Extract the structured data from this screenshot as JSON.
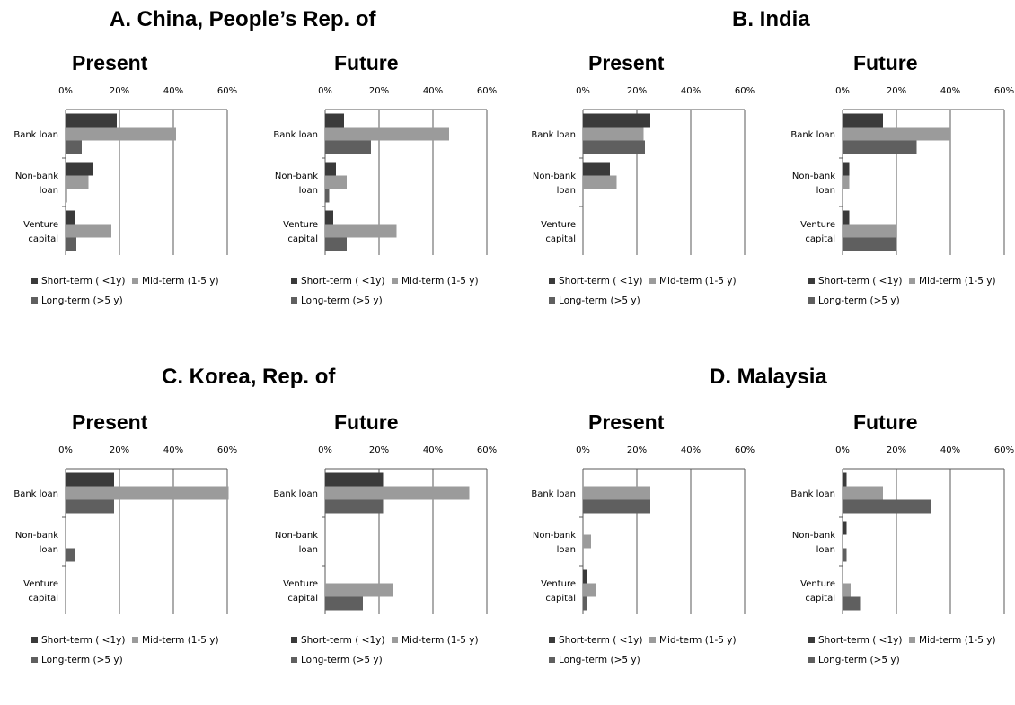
{
  "sections": [
    {
      "id": "A",
      "title": "A.   China, People’s Rep. of"
    },
    {
      "id": "B",
      "title": "B.   India"
    },
    {
      "id": "C",
      "title": "C.   Korea, Rep. of"
    },
    {
      "id": "D",
      "title": "D.   Malaysia"
    }
  ],
  "colors": {
    "short_term": "#3a3a3a",
    "mid_term": "#9b9b9b",
    "long_term": "#5f5f5f",
    "axis": "#595959",
    "grid": "#595959"
  },
  "chart_data": [
    {
      "section": "A",
      "title": "Present",
      "type": "bar",
      "orientation": "horizontal",
      "categories": [
        [
          "Bank loan"
        ],
        [
          "Non-bank",
          "loan"
        ],
        [
          "Venture",
          "capital"
        ]
      ],
      "xlim": [
        0,
        60
      ],
      "ticks": [
        "0%",
        "20%",
        "40%",
        "60%"
      ],
      "grid": true,
      "legend": "bottom",
      "series": [
        {
          "name": "Short-term ( <1y)",
          "values": [
            19,
            10,
            3.5
          ]
        },
        {
          "name": "Mid-term (1-5 y)",
          "values": [
            41,
            8.5,
            17
          ]
        },
        {
          "name": "Long-term (>5 y)",
          "values": [
            6,
            0.5,
            4
          ]
        }
      ]
    },
    {
      "section": "A",
      "title": "Future",
      "type": "bar",
      "orientation": "horizontal",
      "categories": [
        [
          "Bank loan"
        ],
        [
          "Non-bank",
          "loan"
        ],
        [
          "Venture",
          "capital"
        ]
      ],
      "xlim": [
        0,
        60
      ],
      "ticks": [
        "0%",
        "20%",
        "40%",
        "60%"
      ],
      "grid": true,
      "legend": "bottom",
      "series": [
        {
          "name": "Short-term ( <1y)",
          "values": [
            7,
            4,
            3
          ]
        },
        {
          "name": "Mid-term (1-5 y)",
          "values": [
            46,
            8,
            26.5
          ]
        },
        {
          "name": "Long-term (>5 y)",
          "values": [
            17,
            1.5,
            8
          ]
        }
      ]
    },
    {
      "section": "B",
      "title": "Present",
      "type": "bar",
      "orientation": "horizontal",
      "categories": [
        [
          "Bank loan"
        ],
        [
          "Non-bank",
          "loan"
        ],
        [
          "Venture",
          "capital"
        ]
      ],
      "xlim": [
        0,
        60
      ],
      "ticks": [
        "0%",
        "20%",
        "40%",
        "60%"
      ],
      "grid": true,
      "legend": "bottom",
      "series": [
        {
          "name": "Short-term ( <1y)",
          "values": [
            25,
            10,
            0
          ]
        },
        {
          "name": "Mid-term (1-5 y)",
          "values": [
            22.5,
            12.5,
            0
          ]
        },
        {
          "name": "Long-term (>5 y)",
          "values": [
            23,
            0,
            0
          ]
        }
      ]
    },
    {
      "section": "B",
      "title": "Future",
      "type": "bar",
      "orientation": "horizontal",
      "categories": [
        [
          "Bank loan"
        ],
        [
          "Non-bank",
          "loan"
        ],
        [
          "Venture",
          "capital"
        ]
      ],
      "xlim": [
        0,
        60
      ],
      "ticks": [
        "0%",
        "20%",
        "40%",
        "60%"
      ],
      "grid": true,
      "legend": "bottom",
      "series": [
        {
          "name": "Short-term ( <1y)",
          "values": [
            15,
            2.5,
            2.5
          ]
        },
        {
          "name": "Mid-term (1-5 y)",
          "values": [
            40,
            2.5,
            20
          ]
        },
        {
          "name": "Long-term (>5 y)",
          "values": [
            27.5,
            0,
            20
          ]
        }
      ]
    },
    {
      "section": "C",
      "title": "Present",
      "type": "bar",
      "orientation": "horizontal",
      "categories": [
        [
          "Bank loan"
        ],
        [
          "Non-bank",
          "loan"
        ],
        [
          "Venture",
          "capital"
        ]
      ],
      "xlim": [
        0,
        60
      ],
      "ticks": [
        "0%",
        "20%",
        "40%",
        "60%"
      ],
      "grid": true,
      "legend": "bottom",
      "series": [
        {
          "name": "Short-term ( <1y)",
          "values": [
            18,
            0,
            0
          ]
        },
        {
          "name": "Mid-term (1-5 y)",
          "values": [
            60.5,
            0,
            0
          ]
        },
        {
          "name": "Long-term (>5 y)",
          "values": [
            18,
            3.5,
            0
          ]
        }
      ]
    },
    {
      "section": "C",
      "title": "Future",
      "type": "bar",
      "orientation": "horizontal",
      "categories": [
        [
          "Bank loan"
        ],
        [
          "Non-bank",
          "loan"
        ],
        [
          "Venture",
          "capital"
        ]
      ],
      "xlim": [
        0,
        60
      ],
      "ticks": [
        "0%",
        "20%",
        "40%",
        "60%"
      ],
      "grid": true,
      "legend": "bottom",
      "series": [
        {
          "name": "Short-term ( <1y)",
          "values": [
            21.5,
            0,
            0
          ]
        },
        {
          "name": "Mid-term (1-5 y)",
          "values": [
            53.5,
            0,
            25
          ]
        },
        {
          "name": "Long-term (>5 y)",
          "values": [
            21.5,
            0,
            14
          ]
        }
      ]
    },
    {
      "section": "D",
      "title": "Present",
      "type": "bar",
      "orientation": "horizontal",
      "categories": [
        [
          "Bank loan"
        ],
        [
          "Non-bank",
          "loan"
        ],
        [
          "Venture",
          "capital"
        ]
      ],
      "xlim": [
        0,
        60
      ],
      "ticks": [
        "0%",
        "20%",
        "40%",
        "60%"
      ],
      "grid": true,
      "legend": "bottom",
      "series": [
        {
          "name": "Short-term ( <1y)",
          "values": [
            0,
            0,
            1.5
          ]
        },
        {
          "name": "Mid-term (1-5 y)",
          "values": [
            25,
            3,
            5
          ]
        },
        {
          "name": "Long-term (>5 y)",
          "values": [
            25,
            0,
            1.5
          ]
        }
      ]
    },
    {
      "section": "D",
      "title": "Future",
      "type": "bar",
      "orientation": "horizontal",
      "categories": [
        [
          "Bank loan"
        ],
        [
          "Non-bank",
          "loan"
        ],
        [
          "Venture",
          "capital"
        ]
      ],
      "xlim": [
        0,
        60
      ],
      "ticks": [
        "0%",
        "20%",
        "40%",
        "60%"
      ],
      "grid": true,
      "legend": "bottom",
      "series": [
        {
          "name": "Short-term ( <1y)",
          "values": [
            1.5,
            1.5,
            0
          ]
        },
        {
          "name": "Mid-term (1-5 y)",
          "values": [
            15,
            0,
            3
          ]
        },
        {
          "name": "Long-term (>5 y)",
          "values": [
            33,
            1.5,
            6.5
          ]
        }
      ]
    }
  ]
}
